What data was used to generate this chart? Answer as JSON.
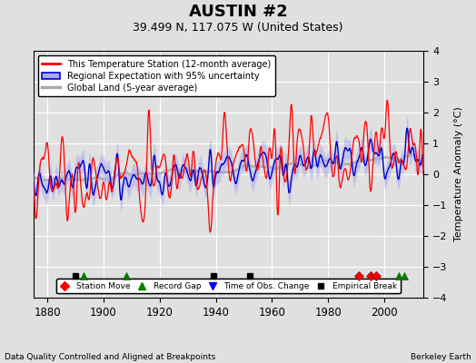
{
  "title": "AUSTIN #2",
  "subtitle": "39.499 N, 117.075 W (United States)",
  "ylabel": "Temperature Anomaly (°C)",
  "xlabel_note": "Data Quality Controlled and Aligned at Breakpoints",
  "source_note": "Berkeley Earth",
  "xlim": [
    1875,
    2014
  ],
  "ylim": [
    -4,
    4
  ],
  "yticks": [
    -4,
    -3,
    -2,
    -1,
    0,
    1,
    2,
    3,
    4
  ],
  "xticks": [
    1880,
    1900,
    1920,
    1940,
    1960,
    1980,
    2000
  ],
  "bg_color": "#e0e0e0",
  "plot_bg_color": "#e0e0e0",
  "grid_color": "white",
  "station_color": "red",
  "regional_color": "#0000cc",
  "regional_fill_color": "#aaaaee",
  "global_color": "#aaaaaa",
  "event_markers": {
    "station_move": {
      "years": [
        1991,
        1995,
        1997
      ],
      "color": "red",
      "marker": "D",
      "size": 5
    },
    "record_gap": {
      "years": [
        1893,
        1908,
        2005,
        2007
      ],
      "color": "green",
      "marker": "^",
      "size": 6
    },
    "obs_change": {
      "years": [],
      "color": "blue",
      "marker": "v",
      "size": 6
    },
    "empirical_break": {
      "years": [
        1890,
        1939,
        1952
      ],
      "color": "black",
      "marker": "s",
      "size": 5
    }
  },
  "random_seed": 17,
  "start_year": 1875,
  "end_year": 2014,
  "n_per_year": 12
}
